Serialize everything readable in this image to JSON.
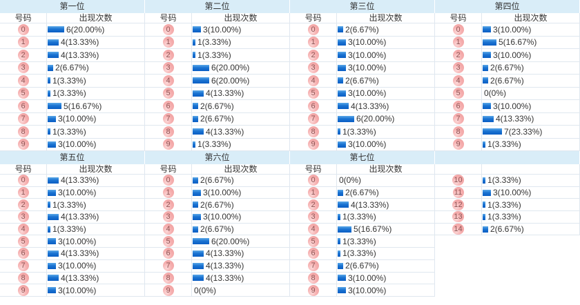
{
  "columns": {
    "number": "号码",
    "count": "出现次数"
  },
  "colors": {
    "band": "#d9edf8",
    "line": "#dfe7ef",
    "text": "#333333",
    "bar_gradient_top": "#5ba9e9",
    "bar_gradient_mid": "#1b74d2",
    "bar_gradient_bottom": "#0a5ec4",
    "badge_highlight": "#fcd9d9",
    "badge_mid": "#f6b0b0",
    "badge_low": "#ee9a9a",
    "badge_text": "#8d5454"
  },
  "groups": [
    {
      "title": "第一位",
      "section": 1,
      "show_headers": true,
      "rows": [
        [
          "0",
          6,
          "6(20.00%)"
        ],
        [
          "1",
          4,
          "4(13.33%)"
        ],
        [
          "2",
          4,
          "4(13.33%)"
        ],
        [
          "3",
          2,
          "2(6.67%)"
        ],
        [
          "4",
          1,
          "1(3.33%)"
        ],
        [
          "5",
          1,
          "1(3.33%)"
        ],
        [
          "6",
          5,
          "5(16.67%)"
        ],
        [
          "7",
          3,
          "3(10.00%)"
        ],
        [
          "8",
          1,
          "1(3.33%)"
        ],
        [
          "9",
          3,
          "3(10.00%)"
        ]
      ]
    },
    {
      "title": "第二位",
      "section": 1,
      "show_headers": true,
      "rows": [
        [
          "0",
          3,
          "3(10.00%)"
        ],
        [
          "1",
          1,
          "1(3.33%)"
        ],
        [
          "2",
          1,
          "1(3.33%)"
        ],
        [
          "3",
          6,
          "6(20.00%)"
        ],
        [
          "4",
          6,
          "6(20.00%)"
        ],
        [
          "5",
          4,
          "4(13.33%)"
        ],
        [
          "6",
          2,
          "2(6.67%)"
        ],
        [
          "7",
          2,
          "2(6.67%)"
        ],
        [
          "8",
          4,
          "4(13.33%)"
        ],
        [
          "9",
          1,
          "1(3.33%)"
        ]
      ]
    },
    {
      "title": "第三位",
      "section": 1,
      "show_headers": true,
      "rows": [
        [
          "0",
          2,
          "2(6.67%)"
        ],
        [
          "1",
          3,
          "3(10.00%)"
        ],
        [
          "2",
          3,
          "3(10.00%)"
        ],
        [
          "3",
          3,
          "3(10.00%)"
        ],
        [
          "4",
          2,
          "2(6.67%)"
        ],
        [
          "5",
          3,
          "3(10.00%)"
        ],
        [
          "6",
          4,
          "4(13.33%)"
        ],
        [
          "7",
          6,
          "6(20.00%)"
        ],
        [
          "8",
          1,
          "1(3.33%)"
        ],
        [
          "9",
          3,
          "3(10.00%)"
        ]
      ]
    },
    {
      "title": "第四位",
      "section": 1,
      "show_headers": true,
      "rows": [
        [
          "0",
          3,
          "3(10.00%)"
        ],
        [
          "1",
          5,
          "5(16.67%)"
        ],
        [
          "2",
          3,
          "3(10.00%)"
        ],
        [
          "3",
          2,
          "2(6.67%)"
        ],
        [
          "4",
          2,
          "2(6.67%)"
        ],
        [
          "5",
          0,
          "0(0%)"
        ],
        [
          "6",
          3,
          "3(10.00%)"
        ],
        [
          "7",
          4,
          "4(13.33%)"
        ],
        [
          "8",
          7,
          "7(23.33%)"
        ],
        [
          "9",
          1,
          "1(3.33%)"
        ]
      ]
    },
    {
      "title": "第五位",
      "section": 2,
      "show_headers": true,
      "rows": [
        [
          "0",
          4,
          "4(13.33%)"
        ],
        [
          "1",
          3,
          "3(10.00%)"
        ],
        [
          "2",
          1,
          "1(3.33%)"
        ],
        [
          "3",
          4,
          "4(13.33%)"
        ],
        [
          "4",
          1,
          "1(3.33%)"
        ],
        [
          "5",
          3,
          "3(10.00%)"
        ],
        [
          "6",
          4,
          "4(13.33%)"
        ],
        [
          "7",
          3,
          "3(10.00%)"
        ],
        [
          "8",
          4,
          "4(13.33%)"
        ],
        [
          "9",
          3,
          "3(10.00%)"
        ]
      ]
    },
    {
      "title": "第六位",
      "section": 2,
      "show_headers": true,
      "rows": [
        [
          "0",
          2,
          "2(6.67%)"
        ],
        [
          "1",
          3,
          "3(10.00%)"
        ],
        [
          "2",
          2,
          "2(6.67%)"
        ],
        [
          "3",
          3,
          "3(10.00%)"
        ],
        [
          "4",
          2,
          "2(6.67%)"
        ],
        [
          "5",
          6,
          "6(20.00%)"
        ],
        [
          "6",
          4,
          "4(13.33%)"
        ],
        [
          "7",
          4,
          "4(13.33%)"
        ],
        [
          "8",
          4,
          "4(13.33%)"
        ],
        [
          "9",
          0,
          "0(0%)"
        ]
      ]
    },
    {
      "title": "第七位",
      "section": 2,
      "show_headers": true,
      "rows": [
        [
          "0",
          0,
          "0(0%)"
        ],
        [
          "1",
          2,
          "2(6.67%)"
        ],
        [
          "2",
          4,
          "4(13.33%)"
        ],
        [
          "3",
          1,
          "1(3.33%)"
        ],
        [
          "4",
          5,
          "5(16.67%)"
        ],
        [
          "5",
          1,
          "1(3.33%)"
        ],
        [
          "6",
          1,
          "1(3.33%)"
        ],
        [
          "7",
          2,
          "2(6.67%)"
        ],
        [
          "8",
          3,
          "3(10.00%)"
        ],
        [
          "9",
          3,
          "3(10.00%)"
        ]
      ]
    },
    {
      "title": "",
      "section": 2,
      "show_headers": false,
      "rows": [
        [
          "10",
          1,
          "1(3.33%)"
        ],
        [
          "11",
          3,
          "3(10.00%)"
        ],
        [
          "12",
          1,
          "1(3.33%)"
        ],
        [
          "13",
          1,
          "1(3.33%)"
        ],
        [
          "14",
          2,
          "2(6.67%)"
        ]
      ]
    }
  ],
  "chart_data": [
    {
      "type": "bar",
      "title": "第一位",
      "xlabel": "号码",
      "ylabel": "出现次数",
      "categories": [
        "0",
        "1",
        "2",
        "3",
        "4",
        "5",
        "6",
        "7",
        "8",
        "9"
      ],
      "values": [
        6,
        4,
        4,
        2,
        1,
        1,
        5,
        3,
        1,
        3
      ],
      "value_labels": [
        "6(20.00%)",
        "4(13.33%)",
        "4(13.33%)",
        "2(6.67%)",
        "1(3.33%)",
        "1(3.33%)",
        "5(16.67%)",
        "3(10.00%)",
        "1(3.33%)",
        "3(10.00%)"
      ]
    },
    {
      "type": "bar",
      "title": "第二位",
      "xlabel": "号码",
      "ylabel": "出现次数",
      "categories": [
        "0",
        "1",
        "2",
        "3",
        "4",
        "5",
        "6",
        "7",
        "8",
        "9"
      ],
      "values": [
        3,
        1,
        1,
        6,
        6,
        4,
        2,
        2,
        4,
        1
      ],
      "value_labels": [
        "3(10.00%)",
        "1(3.33%)",
        "1(3.33%)",
        "6(20.00%)",
        "6(20.00%)",
        "4(13.33%)",
        "2(6.67%)",
        "2(6.67%)",
        "4(13.33%)",
        "1(3.33%)"
      ]
    },
    {
      "type": "bar",
      "title": "第三位",
      "xlabel": "号码",
      "ylabel": "出现次数",
      "categories": [
        "0",
        "1",
        "2",
        "3",
        "4",
        "5",
        "6",
        "7",
        "8",
        "9"
      ],
      "values": [
        2,
        3,
        3,
        3,
        2,
        3,
        4,
        6,
        1,
        3
      ],
      "value_labels": [
        "2(6.67%)",
        "3(10.00%)",
        "3(10.00%)",
        "3(10.00%)",
        "2(6.67%)",
        "3(10.00%)",
        "4(13.33%)",
        "6(20.00%)",
        "1(3.33%)",
        "3(10.00%)"
      ]
    },
    {
      "type": "bar",
      "title": "第四位",
      "xlabel": "号码",
      "ylabel": "出现次数",
      "categories": [
        "0",
        "1",
        "2",
        "3",
        "4",
        "5",
        "6",
        "7",
        "8",
        "9"
      ],
      "values": [
        3,
        5,
        3,
        2,
        2,
        0,
        3,
        4,
        7,
        1
      ],
      "value_labels": [
        "3(10.00%)",
        "5(16.67%)",
        "3(10.00%)",
        "2(6.67%)",
        "2(6.67%)",
        "0(0%)",
        "3(10.00%)",
        "4(13.33%)",
        "7(23.33%)",
        "1(3.33%)"
      ]
    },
    {
      "type": "bar",
      "title": "第五位",
      "xlabel": "号码",
      "ylabel": "出现次数",
      "categories": [
        "0",
        "1",
        "2",
        "3",
        "4",
        "5",
        "6",
        "7",
        "8",
        "9"
      ],
      "values": [
        4,
        3,
        1,
        4,
        1,
        3,
        4,
        3,
        4,
        3
      ],
      "value_labels": [
        "4(13.33%)",
        "3(10.00%)",
        "1(3.33%)",
        "4(13.33%)",
        "1(3.33%)",
        "3(10.00%)",
        "4(13.33%)",
        "3(10.00%)",
        "4(13.33%)",
        "3(10.00%)"
      ]
    },
    {
      "type": "bar",
      "title": "第六位",
      "xlabel": "号码",
      "ylabel": "出现次数",
      "categories": [
        "0",
        "1",
        "2",
        "3",
        "4",
        "5",
        "6",
        "7",
        "8",
        "9"
      ],
      "values": [
        2,
        3,
        2,
        3,
        2,
        6,
        4,
        4,
        4,
        0
      ],
      "value_labels": [
        "2(6.67%)",
        "3(10.00%)",
        "2(6.67%)",
        "3(10.00%)",
        "2(6.67%)",
        "6(20.00%)",
        "4(13.33%)",
        "4(13.33%)",
        "4(13.33%)",
        "0(0%)"
      ]
    },
    {
      "type": "bar",
      "title": "第七位",
      "xlabel": "号码",
      "ylabel": "出现次数",
      "categories": [
        "0",
        "1",
        "2",
        "3",
        "4",
        "5",
        "6",
        "7",
        "8",
        "9"
      ],
      "values": [
        0,
        2,
        4,
        1,
        5,
        1,
        1,
        2,
        3,
        3
      ],
      "value_labels": [
        "0(0%)",
        "2(6.67%)",
        "4(13.33%)",
        "1(3.33%)",
        "5(16.67%)",
        "1(3.33%)",
        "1(3.33%)",
        "2(6.67%)",
        "3(10.00%)",
        "3(10.00%)"
      ]
    },
    {
      "type": "bar",
      "title": "",
      "xlabel": "号码",
      "ylabel": "出现次数",
      "categories": [
        "10",
        "11",
        "12",
        "13",
        "14"
      ],
      "values": [
        1,
        3,
        1,
        1,
        2
      ],
      "value_labels": [
        "1(3.33%)",
        "3(10.00%)",
        "1(3.33%)",
        "1(3.33%)",
        "2(6.67%)"
      ]
    }
  ]
}
